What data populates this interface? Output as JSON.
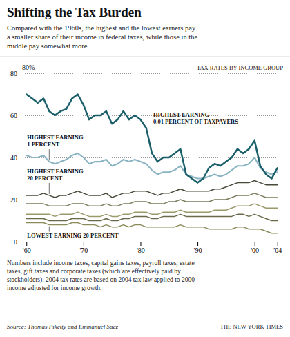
{
  "chart_data": {
    "type": "line",
    "title": "Shifting the Tax Burden",
    "subtitle": "Compared with the 1960s, the highest and the lowest earners pay\na smaller share of their income in federal taxes, while those in the\nmiddle pay somewhat more.",
    "ylabel": "TAX RATES BY INCOME GROUP",
    "annotations": [
      "80%"
    ],
    "footnote": "Numbers include income taxes, capital gains taxes, payroll taxes, estate\ntaxes, gift taxes and corporate taxes (which are effectively paid by\nstockholders). 2004 tax rates are based on 2004 tax law applied to 2000\nincome adjusted for income growth.",
    "source": "Source: Thomas Piketty and Emmanuel Saez",
    "credit": "THE NEW YORK TIMES",
    "x": [
      1960,
      1961,
      1962,
      1963,
      1964,
      1965,
      1966,
      1967,
      1968,
      1969,
      1970,
      1971,
      1972,
      1973,
      1974,
      1975,
      1976,
      1977,
      1978,
      1979,
      1980,
      1981,
      1982,
      1983,
      1984,
      1985,
      1986,
      1987,
      1988,
      1989,
      1990,
      1991,
      1992,
      1993,
      1994,
      1995,
      1996,
      1997,
      1998,
      1999,
      2000,
      2001,
      2002,
      2003,
      2004
    ],
    "series": [
      {
        "name": "HIGHEST EARNING\n0.01 PERCENT OF TAXPAYERS",
        "color": "#1a5f6a",
        "values": [
          70,
          68,
          66,
          68,
          62,
          60,
          62,
          63,
          68,
          70,
          65,
          58,
          60,
          60,
          62,
          56,
          58,
          62,
          58,
          60,
          58,
          54,
          42,
          38,
          40,
          40,
          42,
          44,
          32,
          30,
          28,
          30,
          35,
          37,
          36,
          38,
          40,
          44,
          42,
          44,
          48,
          36,
          32,
          30,
          35
        ]
      },
      {
        "name": "HIGHEST EARNING\n1 PERCENT",
        "color": "#8ab4c2",
        "values": [
          41,
          40,
          40,
          41,
          38,
          37,
          38,
          39,
          41,
          42,
          40,
          37,
          38,
          38,
          39,
          36,
          37,
          39,
          38,
          39,
          38,
          37,
          34,
          32,
          33,
          33,
          34,
          36,
          32,
          31,
          30,
          30,
          31,
          32,
          31,
          32,
          34,
          36,
          36,
          37,
          40,
          35,
          33,
          32,
          33
        ]
      },
      {
        "name": "HIGHEST EARNING\n20 PERCENT",
        "color": "#4a4a3a",
        "values": [
          22,
          22,
          22,
          23,
          22,
          21,
          22,
          22,
          23,
          24,
          23,
          22,
          22,
          22,
          23,
          21,
          22,
          23,
          23,
          24,
          24,
          24,
          23,
          22,
          23,
          23,
          24,
          25,
          24,
          24,
          24,
          24,
          24,
          25,
          25,
          26,
          27,
          28,
          28,
          28,
          29,
          28,
          27,
          27,
          27
        ]
      },
      {
        "color": "#7a7a5a",
        "values": [
          18,
          18,
          18,
          18,
          17,
          17,
          17,
          17,
          18,
          18,
          18,
          17,
          17,
          17,
          18,
          17,
          17,
          18,
          18,
          19,
          19,
          19,
          18,
          18,
          18,
          19,
          19,
          20,
          19,
          19,
          19,
          19,
          19,
          20,
          20,
          20,
          21,
          22,
          22,
          22,
          23,
          22,
          21,
          21,
          21
        ]
      },
      {
        "color": "#9a9a6a",
        "values": [
          13,
          13,
          13,
          13,
          13,
          12,
          13,
          13,
          13,
          14,
          13,
          12,
          12,
          12,
          13,
          12,
          12,
          13,
          13,
          14,
          14,
          14,
          13,
          13,
          14,
          14,
          14,
          15,
          14,
          14,
          14,
          14,
          14,
          15,
          15,
          15,
          16,
          17,
          17,
          17,
          18,
          17,
          16,
          16,
          16
        ]
      },
      {
        "color": "#6a6a4a",
        "values": [
          11,
          11,
          11,
          11,
          10,
          10,
          10,
          10,
          11,
          11,
          11,
          10,
          10,
          10,
          11,
          10,
          10,
          11,
          11,
          12,
          12,
          12,
          11,
          11,
          12,
          12,
          12,
          13,
          12,
          12,
          12,
          12,
          12,
          12,
          12,
          12,
          12,
          13,
          13,
          12,
          13,
          12,
          11,
          10,
          10
        ]
      },
      {
        "name": "LOWEST EARNING 20 PERCENT",
        "color": "#8a8a5a",
        "values": [
          9,
          9,
          9,
          9,
          8,
          8,
          8,
          8,
          9,
          9,
          8,
          8,
          8,
          7,
          8,
          7,
          7,
          8,
          7,
          8,
          8,
          7,
          7,
          7,
          7,
          7,
          7,
          8,
          7,
          7,
          7,
          7,
          6,
          6,
          6,
          6,
          6,
          7,
          7,
          6,
          6,
          6,
          5,
          4,
          4
        ]
      }
    ],
    "xlim": [
      1959,
      2005
    ],
    "xticks": [
      {
        "value": 1960,
        "label": "'60"
      },
      {
        "value": 1970,
        "label": "'70"
      },
      {
        "value": 1980,
        "label": "'80"
      },
      {
        "value": 1990,
        "label": "'90"
      },
      {
        "value": 2000,
        "label": "'00"
      },
      {
        "value": 2004,
        "label": "'04"
      }
    ],
    "ylim": [
      0,
      80
    ],
    "yticks": [
      0,
      20,
      40,
      60,
      80
    ],
    "grid": true
  }
}
